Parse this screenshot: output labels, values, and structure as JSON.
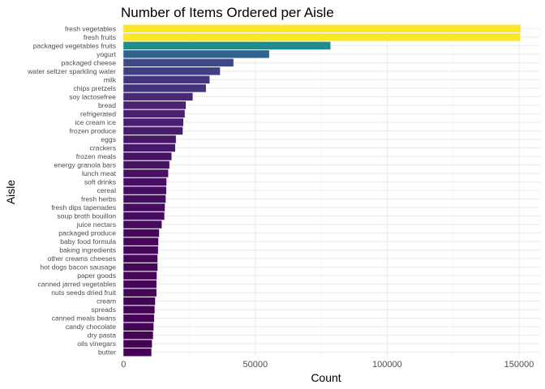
{
  "chart_data": {
    "type": "bar",
    "orientation": "horizontal",
    "title": "Number of Items Ordered per Aisle",
    "xlabel": "Count",
    "ylabel": "Aisle",
    "xlim": [
      -1000,
      158000
    ],
    "x_ticks": [
      0,
      50000,
      100000,
      150000
    ],
    "x_tick_labels": [
      "0",
      "50000",
      "100000",
      "150000"
    ],
    "x_minor_ticks": [
      25000,
      75000,
      125000
    ],
    "grid": true,
    "legend": "none",
    "colormap": "viridis",
    "categories": [
      "fresh vegetables",
      "fresh fruits",
      "packaged vegetables fruits",
      "yogurt",
      "packaged cheese",
      "water seltzer sparkling water",
      "milk",
      "chips pretzels",
      "soy lactosefree",
      "bread",
      "refrigerated",
      "ice cream ice",
      "frozen produce",
      "eggs",
      "crackers",
      "frozen meals",
      "energy granola bars",
      "lunch meat",
      "soft drinks",
      "cereal",
      "fresh herbs",
      "fresh dips tapenades",
      "soup broth bouillon",
      "juice nectars",
      "packaged produce",
      "baby food formula",
      "baking ingredients",
      "other creams cheeses",
      "hot dogs bacon sausage",
      "paper goods",
      "canned jarred vegetables",
      "nuts seeds dried fruit",
      "cream",
      "spreads",
      "canned meals beans",
      "candy chocolate",
      "dry pasta",
      "oils vinegars",
      "butter"
    ],
    "values": [
      150609,
      150473,
      78493,
      55240,
      41699,
      36617,
      32644,
      31269,
      26240,
      23635,
      23228,
      22676,
      22453,
      19875,
      19592,
      18221,
      17408,
      16957,
      16279,
      16201,
      16000,
      15673,
      15500,
      14500,
      13500,
      13200,
      13100,
      12900,
      12900,
      12600,
      12500,
      12500,
      12000,
      11800,
      11600,
      11400,
      11200,
      10800,
      10575
    ]
  }
}
